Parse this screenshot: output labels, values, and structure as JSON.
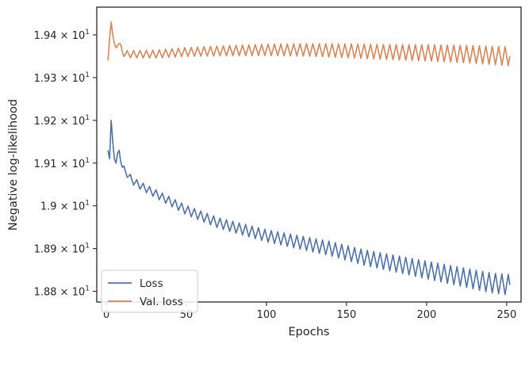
{
  "chart_data": {
    "type": "line",
    "xlabel": "Epochs",
    "ylabel": "Negative log-likelihood",
    "xlim": [
      -6,
      259
    ],
    "ylim": [
      18.775,
      19.465
    ],
    "x_ticks": [
      0,
      50,
      100,
      150,
      200,
      250
    ],
    "x_tick_labels": [
      "0",
      "50",
      "100",
      "150",
      "200",
      "250"
    ],
    "y_ticks": [
      {
        "value": 18.8,
        "mantissa": "1.88",
        "base": "10",
        "exp": "1"
      },
      {
        "value": 18.9,
        "mantissa": "1.89",
        "base": "10",
        "exp": "1"
      },
      {
        "value": 19.0,
        "mantissa": "1.9",
        "base": "10",
        "exp": "1"
      },
      {
        "value": 19.1,
        "mantissa": "1.91",
        "base": "10",
        "exp": "1"
      },
      {
        "value": 19.2,
        "mantissa": "1.92",
        "base": "10",
        "exp": "1"
      },
      {
        "value": 19.3,
        "mantissa": "1.93",
        "base": "10",
        "exp": "1"
      },
      {
        "value": 19.4,
        "mantissa": "1.94",
        "base": "10",
        "exp": "1"
      }
    ],
    "grid": false,
    "legend_position": "lower-left",
    "series": [
      {
        "name": "Loss",
        "color": "#4c72b0",
        "x_start": 1,
        "x_end": 252,
        "points": [
          [
            1,
            19.13
          ],
          [
            2,
            19.11
          ],
          [
            3,
            19.2
          ],
          [
            4,
            19.15
          ],
          [
            5,
            19.11
          ],
          [
            6,
            19.1
          ],
          [
            8,
            19.13
          ],
          [
            10,
            19.09
          ],
          [
            12,
            19.08
          ],
          [
            14,
            19.07
          ],
          [
            16,
            19.06
          ],
          [
            20,
            19.05
          ],
          [
            30,
            19.03
          ],
          [
            40,
            19.01
          ],
          [
            50,
            18.99
          ],
          [
            60,
            18.975
          ],
          [
            70,
            18.96
          ],
          [
            80,
            18.95
          ],
          [
            100,
            18.93
          ],
          [
            120,
            18.915
          ],
          [
            140,
            18.9
          ],
          [
            160,
            18.88
          ],
          [
            180,
            18.865
          ],
          [
            200,
            18.85
          ],
          [
            220,
            18.835
          ],
          [
            240,
            18.82
          ],
          [
            252,
            18.815
          ]
        ],
        "oscillation": {
          "period": 4,
          "amplitude_start": 0.008,
          "amplitude_end": 0.024,
          "from_epoch": 6
        }
      },
      {
        "name": "Val. loss",
        "color": "#dd8452",
        "x_start": 1,
        "x_end": 252,
        "points": [
          [
            1,
            19.34
          ],
          [
            2,
            19.39
          ],
          [
            3,
            19.43
          ],
          [
            4,
            19.4
          ],
          [
            5,
            19.38
          ],
          [
            6,
            19.37
          ],
          [
            8,
            19.38
          ],
          [
            10,
            19.36
          ],
          [
            12,
            19.355
          ],
          [
            15,
            19.355
          ],
          [
            20,
            19.355
          ],
          [
            30,
            19.355
          ],
          [
            50,
            19.36
          ],
          [
            75,
            19.363
          ],
          [
            100,
            19.365
          ],
          [
            125,
            19.365
          ],
          [
            150,
            19.363
          ],
          [
            175,
            19.36
          ],
          [
            200,
            19.358
          ],
          [
            225,
            19.355
          ],
          [
            252,
            19.35
          ]
        ],
        "oscillation": {
          "period": 4,
          "amplitude_start": 0.008,
          "amplitude_end": 0.022,
          "from_epoch": 8
        }
      }
    ]
  }
}
